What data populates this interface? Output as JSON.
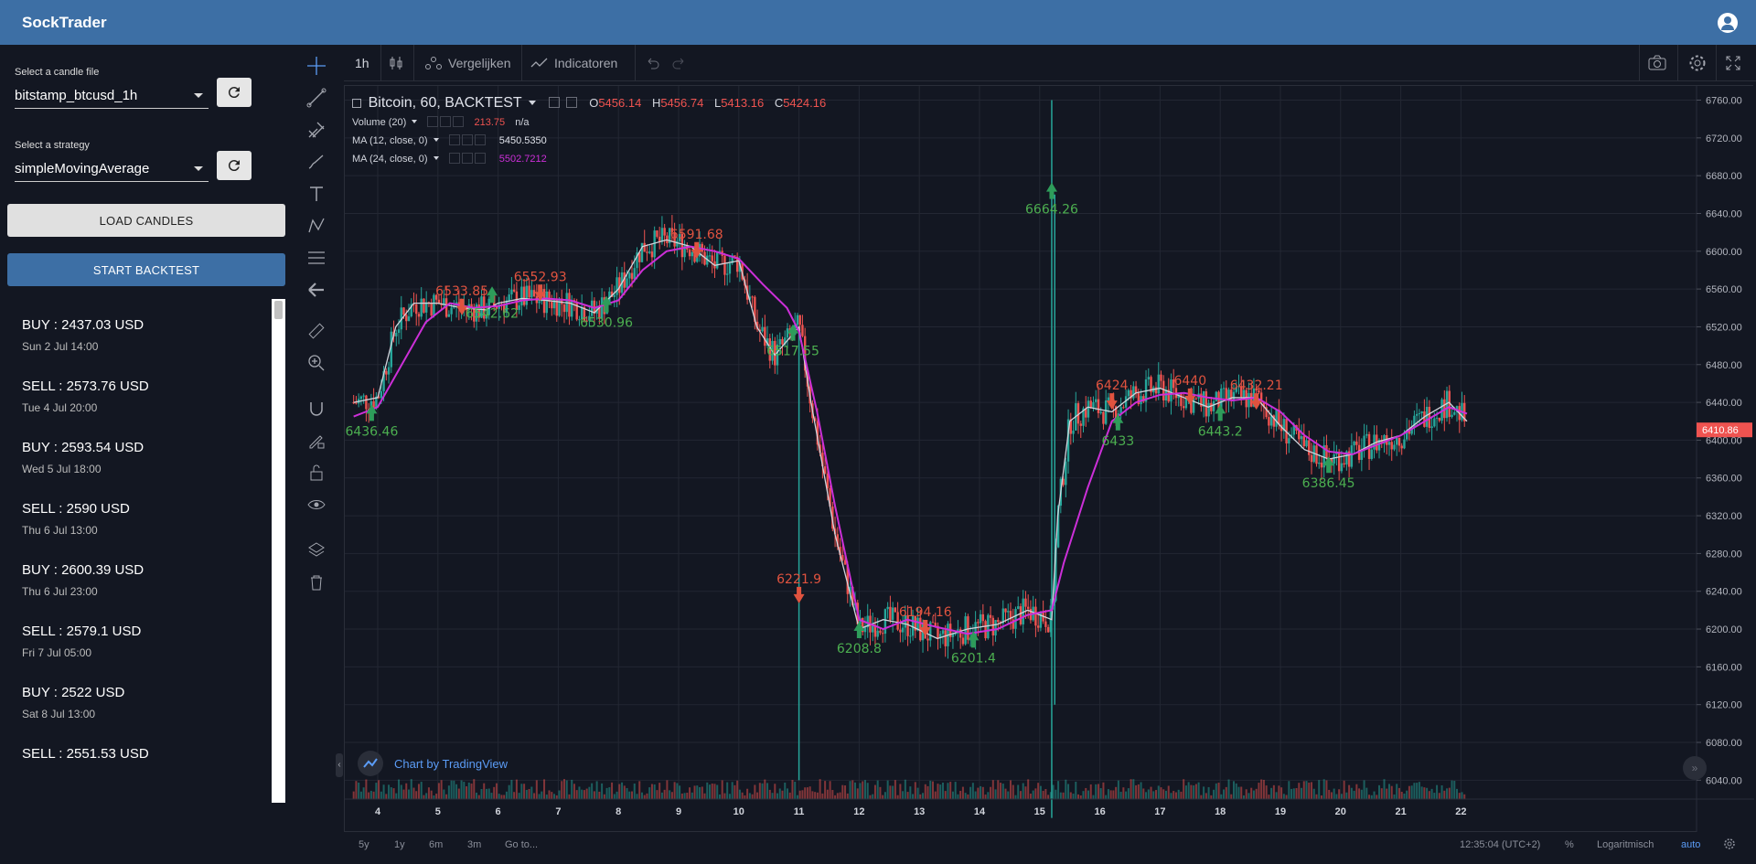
{
  "app": {
    "title": "SockTrader"
  },
  "sidebar": {
    "candle_label": "Select a candle file",
    "candle_value": "bitstamp_btcusd_1h",
    "strategy_label": "Select a strategy",
    "strategy_value": "simpleMovingAverage",
    "load_button": "LOAD CANDLES",
    "start_button": "START BACKTEST",
    "trades": [
      {
        "title": "BUY : 2437.03 USD",
        "date": "Sun 2 Jul 14:00"
      },
      {
        "title": "SELL : 2573.76 USD",
        "date": "Tue 4 Jul 20:00"
      },
      {
        "title": "BUY : 2593.54 USD",
        "date": "Wed 5 Jul 18:00"
      },
      {
        "title": "SELL : 2590 USD",
        "date": "Thu 6 Jul 13:00"
      },
      {
        "title": "BUY : 2600.39 USD",
        "date": "Thu 6 Jul 23:00"
      },
      {
        "title": "SELL : 2579.1 USD",
        "date": "Fri 7 Jul 05:00"
      },
      {
        "title": "BUY : 2522 USD",
        "date": "Sat 8 Jul 13:00"
      },
      {
        "title": "SELL : 2551.53 USD",
        "date": ""
      }
    ]
  },
  "chart_toolbar": {
    "interval": "1h",
    "compare": "Vergelijken",
    "indicators": "Indicatoren"
  },
  "legend": {
    "symbol": "Bitcoin, 60, BACKTEST",
    "o_label": "O",
    "o_value": "5456.14",
    "h_label": "H",
    "h_value": "5456.74",
    "l_label": "L",
    "l_value": "5413.16",
    "c_label": "C",
    "c_value": "5424.16",
    "volume_label": "Volume (20)",
    "volume_value": "213.75",
    "volume_na": "n/a",
    "ma12_label": "MA (12, close, 0)",
    "ma12_value": "5450.5350",
    "ma24_label": "MA (24, close, 0)",
    "ma24_value": "5502.7212"
  },
  "watermark": "Chart by TradingView",
  "bottom": {
    "ranges": [
      "5y",
      "1y",
      "6m",
      "3m"
    ],
    "goto": "Go to...",
    "time": "12:35:04 (UTC+2)",
    "percent": "%",
    "log": "Logaritmisch",
    "auto": "auto"
  },
  "colors": {
    "up": "#26a69a",
    "down": "#ef5350",
    "ma12": "#d1d4dc",
    "ma24": "#cc2fd8",
    "price_tag": "#ef5350",
    "accent": "#3d6fa5"
  },
  "chart_data": {
    "type": "candlestick",
    "title": "Bitcoin, 60, BACKTEST",
    "x_ticks": [
      "4",
      "5",
      "6",
      "7",
      "8",
      "9",
      "10",
      "11",
      "12",
      "13",
      "14",
      "15",
      "16",
      "17",
      "18",
      "19",
      "20",
      "21",
      "22"
    ],
    "y_ticks": [
      6040,
      6080,
      6120,
      6160,
      6200,
      6240,
      6280,
      6320,
      6360,
      6400,
      6440,
      6480,
      6520,
      6560,
      6600,
      6640,
      6680,
      6720,
      6760
    ],
    "ylim": [
      6020,
      6775
    ],
    "last_price": "6410.86",
    "ma12_path": [
      [
        3.6,
        6440
      ],
      [
        4.0,
        6445
      ],
      [
        4.3,
        6520
      ],
      [
        4.6,
        6545
      ],
      [
        5.0,
        6545
      ],
      [
        5.4,
        6540
      ],
      [
        5.8,
        6538
      ],
      [
        6.0,
        6545
      ],
      [
        6.4,
        6550
      ],
      [
        6.8,
        6548
      ],
      [
        7.2,
        6545
      ],
      [
        7.6,
        6535
      ],
      [
        8.0,
        6560
      ],
      [
        8.4,
        6605
      ],
      [
        8.8,
        6612
      ],
      [
        9.2,
        6605
      ],
      [
        9.6,
        6585
      ],
      [
        10.0,
        6590
      ],
      [
        10.3,
        6520
      ],
      [
        10.6,
        6490
      ],
      [
        11.0,
        6520
      ],
      [
        11.2,
        6440
      ],
      [
        11.6,
        6300
      ],
      [
        12.0,
        6200
      ],
      [
        12.4,
        6210
      ],
      [
        12.8,
        6205
      ],
      [
        13.3,
        6190
      ],
      [
        13.8,
        6200
      ],
      [
        14.3,
        6205
      ],
      [
        14.8,
        6220
      ],
      [
        15.2,
        6210
      ],
      [
        15.3,
        6320
      ],
      [
        15.5,
        6420
      ],
      [
        15.8,
        6435
      ],
      [
        16.2,
        6430
      ],
      [
        16.6,
        6450
      ],
      [
        17.0,
        6455
      ],
      [
        17.4,
        6445
      ],
      [
        17.8,
        6435
      ],
      [
        18.2,
        6445
      ],
      [
        18.6,
        6445
      ],
      [
        19.0,
        6415
      ],
      [
        19.4,
        6390
      ],
      [
        19.8,
        6380
      ],
      [
        20.2,
        6385
      ],
      [
        20.6,
        6398
      ],
      [
        21.0,
        6405
      ],
      [
        21.4,
        6425
      ],
      [
        21.8,
        6440
      ],
      [
        22.1,
        6420
      ]
    ],
    "ma24_path": [
      [
        3.6,
        6425
      ],
      [
        4.0,
        6435
      ],
      [
        4.4,
        6480
      ],
      [
        4.8,
        6525
      ],
      [
        5.2,
        6545
      ],
      [
        5.6,
        6540
      ],
      [
        6.0,
        6542
      ],
      [
        6.4,
        6548
      ],
      [
        6.8,
        6550
      ],
      [
        7.2,
        6548
      ],
      [
        7.6,
        6540
      ],
      [
        8.0,
        6548
      ],
      [
        8.4,
        6580
      ],
      [
        8.8,
        6600
      ],
      [
        9.2,
        6605
      ],
      [
        9.6,
        6600
      ],
      [
        10.0,
        6592
      ],
      [
        10.4,
        6565
      ],
      [
        10.8,
        6540
      ],
      [
        11.0,
        6515
      ],
      [
        11.3,
        6430
      ],
      [
        11.6,
        6330
      ],
      [
        12.0,
        6210
      ],
      [
        12.4,
        6200
      ],
      [
        12.8,
        6210
      ],
      [
        13.3,
        6202
      ],
      [
        13.8,
        6195
      ],
      [
        14.3,
        6200
      ],
      [
        14.8,
        6215
      ],
      [
        15.2,
        6220
      ],
      [
        15.4,
        6270
      ],
      [
        15.8,
        6350
      ],
      [
        16.2,
        6420
      ],
      [
        16.6,
        6440
      ],
      [
        17.0,
        6448
      ],
      [
        17.4,
        6450
      ],
      [
        17.8,
        6445
      ],
      [
        18.2,
        6442
      ],
      [
        18.6,
        6445
      ],
      [
        19.0,
        6430
      ],
      [
        19.4,
        6405
      ],
      [
        19.8,
        6388
      ],
      [
        20.2,
        6385
      ],
      [
        20.6,
        6395
      ],
      [
        21.0,
        6405
      ],
      [
        21.4,
        6420
      ],
      [
        21.8,
        6435
      ],
      [
        22.1,
        6428
      ]
    ],
    "markers": [
      {
        "side": "buy",
        "x": 3.9,
        "y": 6430,
        "label": "6436.46"
      },
      {
        "side": "sell",
        "x": 5.4,
        "y": 6540,
        "label": "6533.85"
      },
      {
        "side": "buy",
        "x": 5.9,
        "y": 6555,
        "label": "6542.62"
      },
      {
        "side": "sell",
        "x": 6.7,
        "y": 6555,
        "label": "6552.93"
      },
      {
        "side": "buy",
        "x": 7.8,
        "y": 6545,
        "label": "6530.96"
      },
      {
        "side": "sell",
        "x": 9.3,
        "y": 6600,
        "label": "6591.68"
      },
      {
        "side": "buy",
        "x": 10.9,
        "y": 6515,
        "label": "6517.55"
      },
      {
        "side": "sell",
        "x": 11.0,
        "y": 6235,
        "label": "6221.9"
      },
      {
        "side": "buy",
        "x": 12.0,
        "y": 6200,
        "label": "6208.8"
      },
      {
        "side": "sell",
        "x": 13.1,
        "y": 6200,
        "label": "6194.16"
      },
      {
        "side": "buy",
        "x": 13.9,
        "y": 6190,
        "label": "6201.4"
      },
      {
        "side": "buy",
        "x": 15.2,
        "y": 6665,
        "label": "6664.26"
      },
      {
        "side": "sell",
        "x": 16.2,
        "y": 6440,
        "label": "6424"
      },
      {
        "side": "buy",
        "x": 16.3,
        "y": 6420,
        "label": "6433"
      },
      {
        "side": "sell",
        "x": 17.5,
        "y": 6445,
        "label": "6440"
      },
      {
        "side": "buy",
        "x": 18.0,
        "y": 6430,
        "label": "6443.2"
      },
      {
        "side": "sell",
        "x": 18.6,
        "y": 6440,
        "label": "6432.21"
      },
      {
        "side": "buy",
        "x": 19.8,
        "y": 6375,
        "label": "6386.45"
      }
    ]
  }
}
